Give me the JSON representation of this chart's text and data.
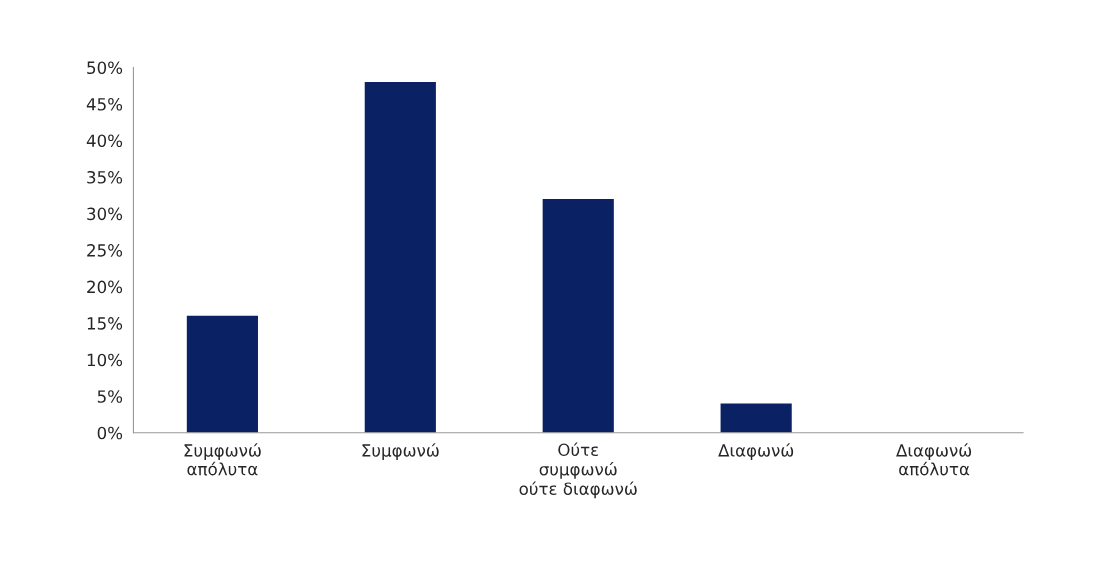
{
  "chart_data": {
    "type": "bar",
    "categories": [
      "Συμφωνώ\nαπόλυτα",
      "Συμφωνώ",
      "Ούτε\nσυμφωνώ\nούτε διαφωνώ",
      "Διαφωνώ",
      "Διαφωνώ\nαπόλυτα"
    ],
    "values": [
      16,
      48,
      32,
      4,
      0
    ],
    "color": "#0a2163",
    "ylim": [
      0,
      50
    ],
    "yticks": [
      {
        "value": 0,
        "label": "0%"
      },
      {
        "value": 5,
        "label": "5%"
      },
      {
        "value": 10,
        "label": "10%"
      },
      {
        "value": 15,
        "label": "15%"
      },
      {
        "value": 20,
        "label": "20%"
      },
      {
        "value": 25,
        "label": "25%"
      },
      {
        "value": 30,
        "label": "30%"
      },
      {
        "value": 35,
        "label": "35%"
      },
      {
        "value": 40,
        "label": "40%"
      },
      {
        "value": 45,
        "label": "45%"
      },
      {
        "value": 50,
        "label": "50%"
      }
    ],
    "grid": false
  }
}
